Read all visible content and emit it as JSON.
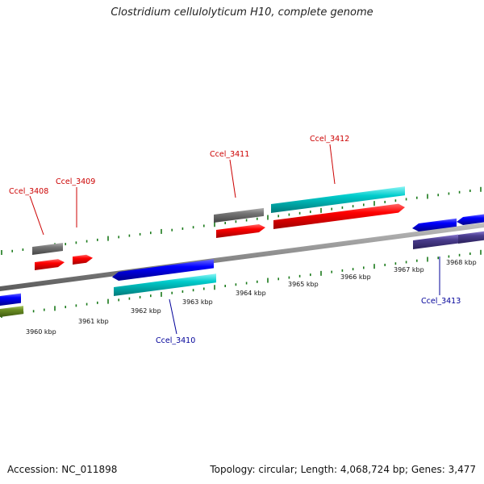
{
  "title": "Clostridium cellulolyticum H10, complete genome",
  "footer": {
    "accession": "Accession: NC_011898",
    "stats": "Topology: circular; Length: 4,068,724 bp; Genes: 3,477"
  },
  "scale": {
    "unit": "kbp",
    "ticks": [
      "3960 kbp",
      "3961 kbp",
      "3962 kbp",
      "3963 kbp",
      "3964 kbp",
      "3965 kbp",
      "3966 kbp",
      "3967 kbp",
      "3968 kbp"
    ]
  },
  "genes": [
    {
      "id": "Ccel_3408",
      "strand": "+",
      "color": "#ff0000"
    },
    {
      "id": "Ccel_3409",
      "strand": "+",
      "color": "#ff0000"
    },
    {
      "id": "Ccel_3410",
      "strand": "-",
      "color": "#0000ff"
    },
    {
      "id": "Ccel_3411",
      "strand": "+",
      "color": "#ff0000"
    },
    {
      "id": "Ccel_3412",
      "strand": "+",
      "color": "#ff0000"
    },
    {
      "id": "Ccel_3413",
      "strand": "-",
      "color": "#0000ff"
    }
  ],
  "colors": {
    "plus_label": "#cc0000",
    "minus_label": "#000099",
    "ticks": "#1a7a1a",
    "backbone": "#8a8a8a",
    "cds_plus": "#ff0000",
    "cds_minus": "#0000ff",
    "feature_cyan": "#00cccc",
    "feature_gray": "#777777",
    "feature_purple": "#4b3d8f",
    "feature_olive": "#6b8e23"
  }
}
